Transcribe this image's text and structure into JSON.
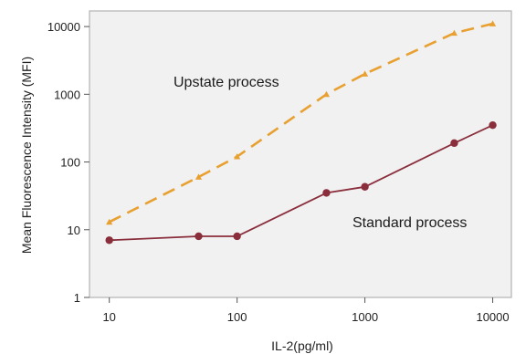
{
  "chart_data": {
    "type": "line",
    "xlabel": "IL-2(pg/ml)",
    "ylabel": "Mean Fluorescence Intensity (MFI)",
    "x_scale": "log",
    "y_scale": "log",
    "xlim": [
      7,
      14000
    ],
    "ylim": [
      1,
      17000
    ],
    "x_ticks": [
      10,
      100,
      1000,
      10000
    ],
    "x_tick_labels": [
      "10",
      "100",
      "1000",
      "10000"
    ],
    "y_ticks": [
      1,
      10,
      100,
      1000,
      10000
    ],
    "y_tick_labels": [
      "1",
      "10",
      "100",
      "1000",
      "10000"
    ],
    "grid": false,
    "series": [
      {
        "color": "#e8a030",
        "line_style": "dashed",
        "marker": "triangle",
        "x": [
          10,
          50,
          100,
          500,
          1000,
          5000,
          10000
        ],
        "y": [
          13,
          60,
          120,
          1000,
          2000,
          8000,
          11000
        ]
      },
      {
        "color": "#8a2e3c",
        "line_style": "solid",
        "marker": "circle",
        "x": [
          10,
          50,
          100,
          500,
          1000,
          5000,
          10000
        ],
        "y": [
          7,
          8,
          8,
          35,
          43,
          190,
          350
        ]
      }
    ],
    "annotations": [
      {
        "text": "Upstate process",
        "series_index": 0
      },
      {
        "text": "Standard process",
        "series_index": 1
      }
    ]
  }
}
